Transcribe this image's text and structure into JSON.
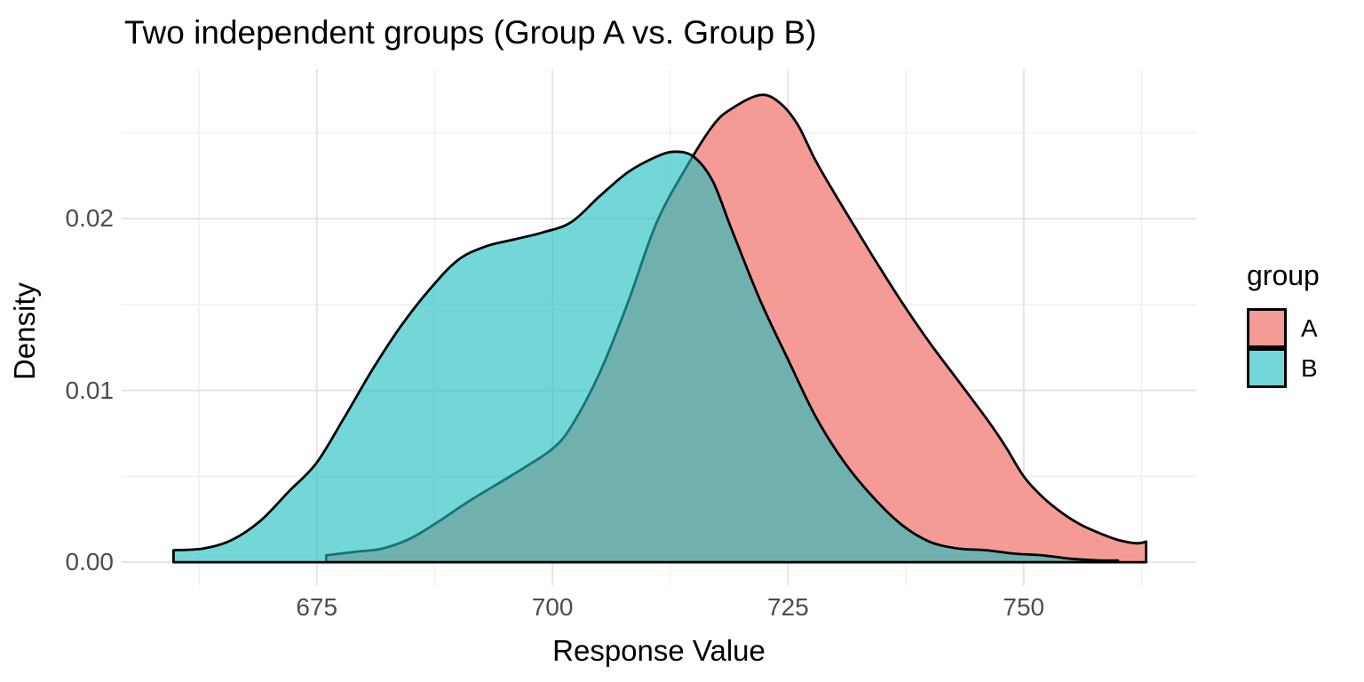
{
  "title": "Two independent groups (Group A vs. Group B)",
  "axes": {
    "x": {
      "label": "Response Value",
      "tick_labels": [
        "675",
        "700",
        "725",
        "750"
      ]
    },
    "y": {
      "label": "Density",
      "tick_labels": [
        "0.00",
        "0.01",
        "0.02"
      ]
    }
  },
  "legend": {
    "title": "group",
    "items": [
      {
        "label": "A",
        "swatch_color": "#F59B95"
      },
      {
        "label": "B",
        "swatch_color": "#74D7D7"
      }
    ]
  },
  "colors": {
    "a_fill": "#F59B95",
    "b_fill": "rgba(30,190,190,0.62)",
    "outline": "#000000",
    "grid_major": "#E4E4E4",
    "grid_minor": "#F1F1F1",
    "tick_text": "#4D4D4D"
  },
  "chart_data": {
    "type": "area",
    "subtype": "overlapping-density-curves",
    "title": "Two independent groups (Group A vs. Group B)",
    "xlabel": "Response Value",
    "ylabel": "Density",
    "x_range": [
      654.3,
      768.3
    ],
    "y_range": [
      -0.00136,
      0.0287
    ],
    "x_major_ticks": [
      675,
      700,
      725,
      750
    ],
    "x_minor_ticks": [
      662.5,
      687.5,
      712.5,
      737.5,
      762.5
    ],
    "y_major_ticks": [
      0.0,
      0.01,
      0.02
    ],
    "y_minor_ticks": [
      0.005,
      0.015,
      0.025
    ],
    "grid": true,
    "legend_position": "right",
    "series": [
      {
        "name": "A",
        "peak": {
          "x": 722,
          "density": 0.0272
        },
        "x": [
          676,
          679,
          682,
          685,
          688,
          691,
          694,
          697,
          700,
          702,
          705,
          708,
          711,
          714,
          717,
          719,
          722,
          724,
          726,
          728,
          731,
          734,
          737,
          740,
          743,
          746,
          748,
          750,
          752,
          754,
          756,
          758,
          760,
          762,
          763
        ],
        "density": [
          0.0004,
          0.0006,
          0.0008,
          0.0014,
          0.0024,
          0.0035,
          0.0045,
          0.0055,
          0.0066,
          0.0079,
          0.011,
          0.0151,
          0.0197,
          0.0228,
          0.0254,
          0.0264,
          0.0272,
          0.0268,
          0.0255,
          0.0233,
          0.0205,
          0.0178,
          0.0152,
          0.0128,
          0.0106,
          0.0084,
          0.0068,
          0.005,
          0.0038,
          0.0029,
          0.0022,
          0.0017,
          0.0013,
          0.0011,
          0.0012
        ]
      },
      {
        "name": "B",
        "peak": {
          "x": 713,
          "density": 0.0239
        },
        "x": [
          659.8,
          663,
          666,
          669,
          672,
          675,
          678,
          681,
          684,
          687,
          690,
          693,
          696,
          699,
          702,
          705,
          708,
          711,
          713,
          715,
          717,
          719,
          722,
          725,
          728,
          731,
          734,
          737,
          740,
          743,
          746,
          749,
          752,
          755,
          758,
          760
        ],
        "density": [
          0.0007,
          0.0008,
          0.0013,
          0.0024,
          0.0041,
          0.0058,
          0.0085,
          0.0113,
          0.0138,
          0.0159,
          0.0176,
          0.0184,
          0.0188,
          0.0192,
          0.0198,
          0.0213,
          0.0227,
          0.0236,
          0.0239,
          0.0236,
          0.0222,
          0.0194,
          0.0153,
          0.0118,
          0.0084,
          0.0058,
          0.0038,
          0.0022,
          0.0012,
          0.0008,
          0.0007,
          0.0005,
          0.0004,
          0.0002,
          0.0001,
          0.0001
        ]
      }
    ]
  }
}
